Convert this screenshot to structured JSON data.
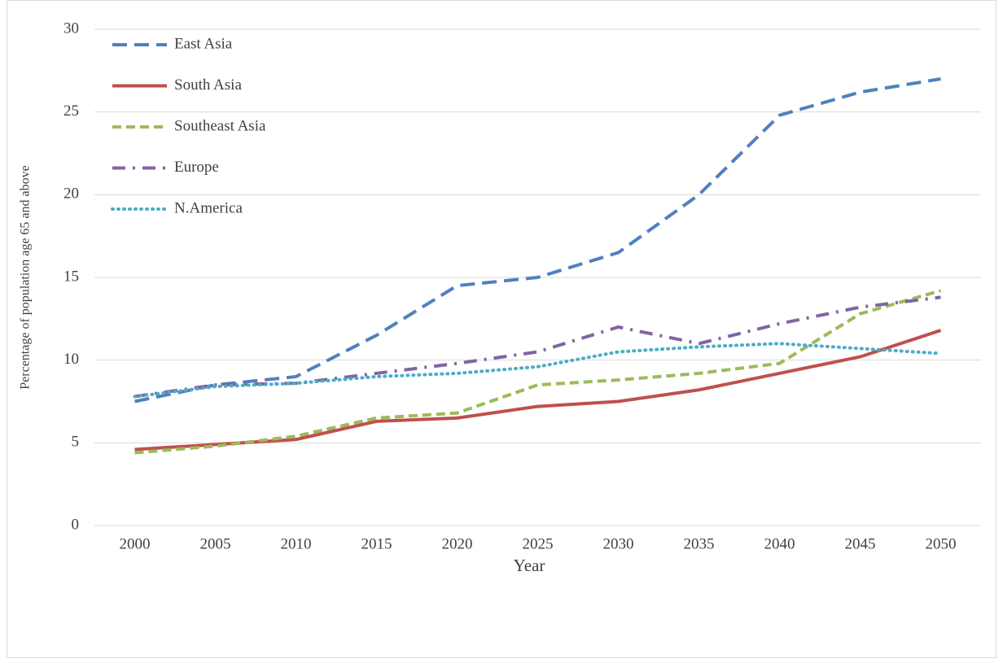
{
  "chart_data": {
    "type": "line",
    "x_label": "Year",
    "y_label": "Percentage of population age 65 and above",
    "categories": [
      "2000",
      "2005",
      "2010",
      "2015",
      "2020",
      "2025",
      "2030",
      "2035",
      "2040",
      "2045",
      "2050"
    ],
    "series": [
      {
        "name": "East Asia",
        "color": "#4f81bd",
        "style": "long-dash",
        "values": [
          7.5,
          8.5,
          9.0,
          11.5,
          14.5,
          15.0,
          16.5,
          20.0,
          24.8,
          26.2,
          27.0
        ]
      },
      {
        "name": "South Asia",
        "color": "#c0504d",
        "style": "solid",
        "values": [
          4.6,
          4.9,
          5.2,
          6.3,
          6.5,
          7.2,
          7.5,
          8.2,
          9.2,
          10.2,
          11.8
        ]
      },
      {
        "name": "Southeast Asia",
        "color": "#9bbb59",
        "style": "dash",
        "values": [
          4.4,
          4.8,
          5.4,
          6.5,
          6.8,
          8.5,
          8.8,
          9.2,
          9.8,
          12.8,
          14.2
        ]
      },
      {
        "name": "Europe",
        "color": "#8064a2",
        "style": "dash-dot",
        "values": [
          7.8,
          8.5,
          8.6,
          9.2,
          9.8,
          10.5,
          12.0,
          11.0,
          12.2,
          13.2,
          13.8
        ]
      },
      {
        "name": "N.America",
        "color": "#4bacc6",
        "style": "dot",
        "values": [
          7.8,
          8.4,
          8.6,
          9.0,
          9.2,
          9.6,
          10.5,
          10.8,
          11.0,
          10.7,
          10.4
        ]
      }
    ],
    "ylim": [
      0,
      30
    ],
    "yticks": [
      0,
      5,
      10,
      15,
      20,
      25,
      30
    ],
    "grid": true,
    "legend": "upper left"
  }
}
